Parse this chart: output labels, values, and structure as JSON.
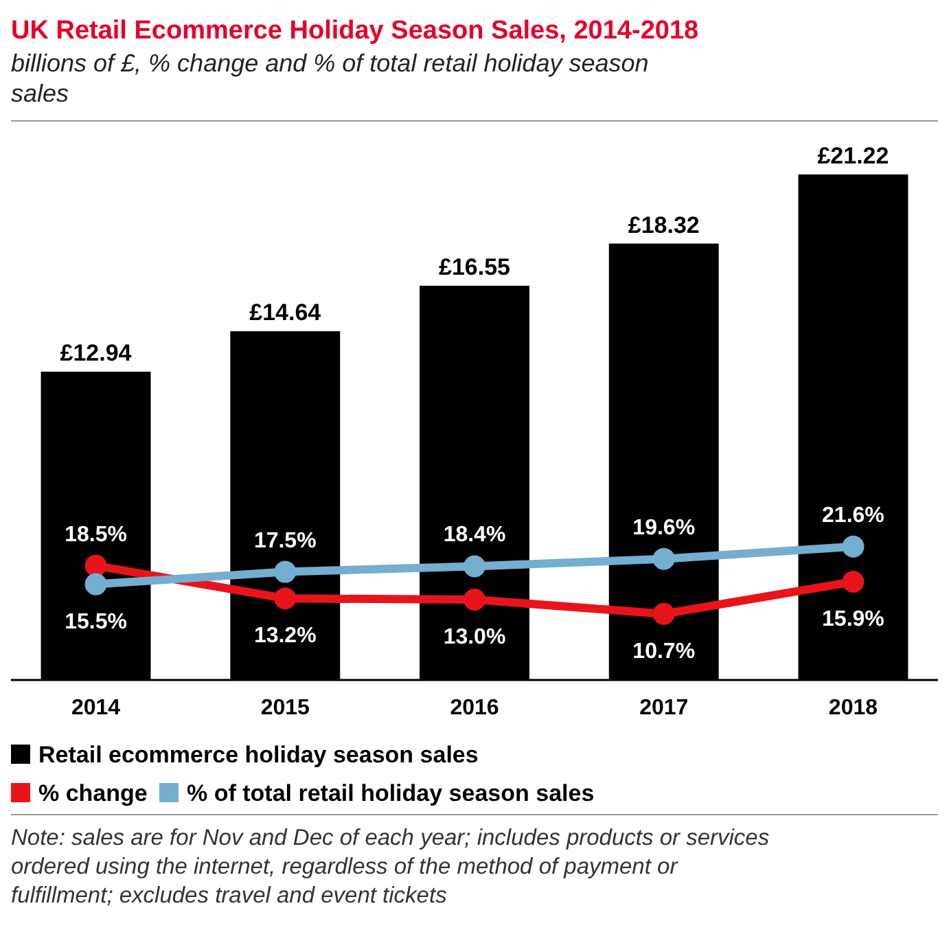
{
  "chart_data": {
    "type": "bar",
    "title": "UK Retail Ecommerce Holiday Season Sales, 2014-2018",
    "subtitle": "billions of £, % change and % of total retail holiday season sales",
    "categories": [
      "2014",
      "2015",
      "2016",
      "2017",
      "2018"
    ],
    "series": [
      {
        "name": "Retail ecommerce holiday season sales",
        "color": "#000000",
        "values": [
          12.94,
          14.64,
          16.55,
          18.32,
          21.22
        ],
        "value_labels": [
          "£12.94",
          "£14.64",
          "£16.55",
          "£18.32",
          "£21.22"
        ]
      },
      {
        "name": "% change",
        "type": "line",
        "axis": "y2",
        "color": "#e8141c",
        "values": [
          18.5,
          13.2,
          13.0,
          10.7,
          15.9
        ],
        "value_labels": [
          "18.5%",
          "13.2%",
          "13.0%",
          "10.7%",
          "15.9%"
        ]
      },
      {
        "name": "% of total retail holiday season sales",
        "type": "line",
        "axis": "y2",
        "color": "#74aed0",
        "values": [
          15.5,
          17.5,
          18.4,
          19.6,
          21.6
        ],
        "value_labels": [
          "15.5%",
          "17.5%",
          "18.4%",
          "19.6%",
          "21.6%"
        ]
      }
    ],
    "tick_labels": "x",
    "legend": "bottom",
    "marker": "circle",
    "annotations": [
      "Note: sales are for Nov and Dec of each year; includes products or services ordered using the internet, regardless of the method of payment or fulfillment; excludes travel and event tickets"
    ]
  }
}
